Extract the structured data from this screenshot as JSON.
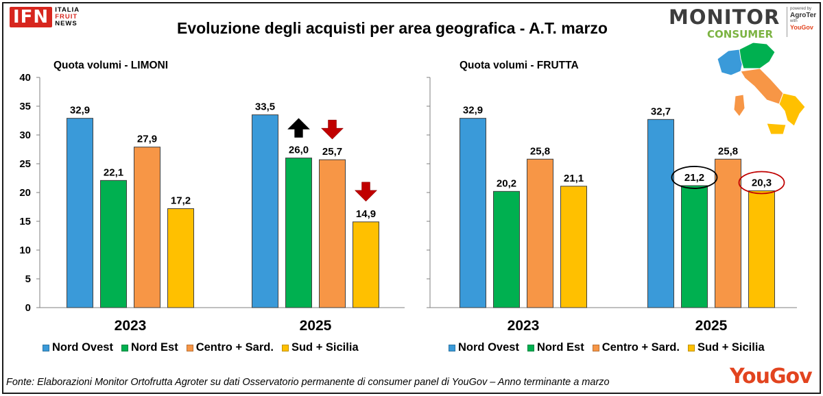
{
  "title": "Evoluzione degli acquisti per area geografica - A.T. marzo",
  "logos": {
    "ifn": {
      "main": "IFN",
      "line1": "ITALIA",
      "line2": "FRUIT",
      "line3": "NEWS"
    },
    "monitor": {
      "word1": "MONITOR",
      "word2": "CONSUMER",
      "powered": "powered by",
      "agroter": "AgroTer",
      "with": "with",
      "yougov": "YouGov"
    },
    "yougov": "YouGov"
  },
  "source": "Fonte: Elaborazioni Monitor Ortofrutta Agroter su dati Osservatorio permanente di consumer panel di YouGov – Anno terminante a marzo",
  "colors": {
    "Nord Ovest": "#3a9ad9",
    "Nord Est": "#00b050",
    "Centro + Sard.": "#f79646",
    "Sud + Sicilia": "#ffc000"
  },
  "chart_data": [
    {
      "type": "bar",
      "title": "Quota volumi - LIMONI",
      "categories": [
        "2023",
        "2025"
      ],
      "ylim": [
        0,
        40
      ],
      "yticks": [
        0,
        5,
        10,
        15,
        20,
        25,
        30,
        35,
        40
      ],
      "grid": false,
      "legend": "bottom",
      "series": [
        {
          "name": "Nord Ovest",
          "values": [
            32.9,
            33.5
          ],
          "labels": [
            "32,9",
            "33,5"
          ]
        },
        {
          "name": "Nord Est",
          "values": [
            22.1,
            26.0
          ],
          "labels": [
            "22,1",
            "26,0"
          ]
        },
        {
          "name": "Centro + Sard.",
          "values": [
            27.9,
            25.7
          ],
          "labels": [
            "27,9",
            "25,7"
          ]
        },
        {
          "name": "Sud + Sicilia",
          "values": [
            17.2,
            14.9
          ],
          "labels": [
            "17,2",
            "14,9"
          ]
        }
      ],
      "annotations": [
        {
          "category": "2025",
          "series": "Nord Est",
          "marker": "arrow-up",
          "color": "#000000"
        },
        {
          "category": "2025",
          "series": "Centro + Sard.",
          "marker": "arrow-down",
          "color": "#c00000"
        },
        {
          "category": "2025",
          "series": "Sud + Sicilia",
          "marker": "arrow-down",
          "color": "#c00000"
        }
      ]
    },
    {
      "type": "bar",
      "title": "Quota volumi - FRUTTA",
      "categories": [
        "2023",
        "2025"
      ],
      "ylim": [
        0,
        40
      ],
      "grid": false,
      "legend": "bottom",
      "series": [
        {
          "name": "Nord Ovest",
          "values": [
            32.9,
            32.7
          ],
          "labels": [
            "32,9",
            "32,7"
          ]
        },
        {
          "name": "Nord Est",
          "values": [
            20.2,
            21.2
          ],
          "labels": [
            "20,2",
            "21,2"
          ]
        },
        {
          "name": "Centro + Sard.",
          "values": [
            25.8,
            25.8
          ],
          "labels": [
            "25,8",
            "25,8"
          ]
        },
        {
          "name": "Sud + Sicilia",
          "values": [
            21.1,
            20.3
          ],
          "labels": [
            "21,1",
            "20,3"
          ]
        }
      ],
      "annotations": [
        {
          "category": "2025",
          "series": "Nord Est",
          "marker": "ellipse",
          "color": "#000000"
        },
        {
          "category": "2025",
          "series": "Sud + Sicilia",
          "marker": "ellipse",
          "color": "#c00000"
        }
      ]
    }
  ]
}
